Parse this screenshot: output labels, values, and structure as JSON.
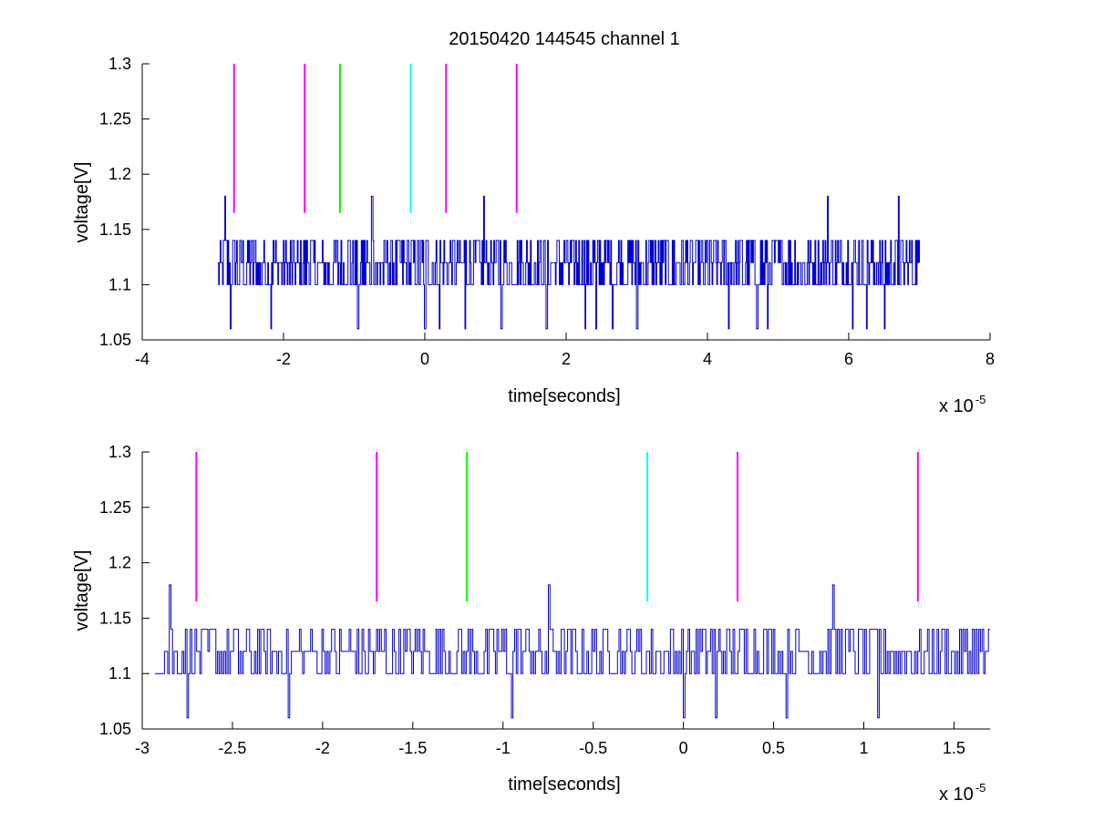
{
  "chart_data": [
    {
      "type": "line",
      "title": "20150420 144545 channel 1",
      "xlabel": "time[seconds]",
      "ylabel": "voltage[V]",
      "x_exponent_base": "x 10",
      "x_exponent_power": "-5",
      "xlim": [
        -4,
        8
      ],
      "ylim": [
        1.05,
        1.3
      ],
      "x_ticks": [
        "-4",
        "-2",
        "0",
        "2",
        "4",
        "6",
        "8"
      ],
      "x_tick_values": [
        -4,
        -2,
        0,
        2,
        4,
        6,
        8
      ],
      "y_ticks": [
        "1.05",
        "1.1",
        "1.15",
        "1.2",
        "1.25",
        "1.3"
      ],
      "y_tick_values": [
        1.05,
        1.1,
        1.15,
        1.2,
        1.25,
        1.3
      ],
      "grid": false,
      "signal": {
        "color": "#0000cc",
        "x_range": [
          -2.93,
          7.0
        ],
        "levels": [
          1.1,
          1.12,
          1.14
        ],
        "spikes_up": [
          -2.83,
          -0.75,
          0.83,
          5.7,
          6.7
        ],
        "spike_up_value": 1.18,
        "dips": [
          -2.75,
          -2.18,
          -0.95,
          0.0,
          0.2,
          0.57,
          1.08,
          1.72,
          2.27,
          2.42,
          2.65,
          3.0,
          4.3,
          4.7,
          4.85,
          6.05,
          6.25,
          6.5,
          6.7
        ],
        "dip_value": 1.06
      },
      "markers": [
        {
          "x": -2.7,
          "color": "#ff00ff"
        },
        {
          "x": -1.7,
          "color": "#ff00ff"
        },
        {
          "x": -1.2,
          "color": "#00ff00"
        },
        {
          "x": -0.2,
          "color": "#00ffff"
        },
        {
          "x": 0.3,
          "color": "#ff00ff"
        },
        {
          "x": 1.3,
          "color": "#ff00ff"
        }
      ],
      "marker_range": [
        1.165,
        1.3
      ]
    },
    {
      "type": "line",
      "title": "",
      "xlabel": "time[seconds]",
      "ylabel": "voltage[V]",
      "x_exponent_base": "x 10",
      "x_exponent_power": "-5",
      "xlim": [
        -3.0,
        1.7
      ],
      "ylim": [
        1.05,
        1.3
      ],
      "x_ticks": [
        "-3",
        "-2.5",
        "-2",
        "-1.5",
        "-1",
        "-0.5",
        "0",
        "0.5",
        "1",
        "1.5"
      ],
      "x_tick_values": [
        -3,
        -2.5,
        -2,
        -1.5,
        -1,
        -0.5,
        0,
        0.5,
        1,
        1.5
      ],
      "y_ticks": [
        "1.05",
        "1.1",
        "1.15",
        "1.2",
        "1.25",
        "1.3"
      ],
      "y_tick_values": [
        1.05,
        1.1,
        1.15,
        1.2,
        1.25,
        1.3
      ],
      "grid": false,
      "signal": {
        "color": "#0000cc",
        "x_range": [
          -2.93,
          1.7
        ],
        "levels": [
          1.1,
          1.12,
          1.14
        ],
        "spikes_up": [
          -2.85,
          -0.75,
          0.83
        ],
        "spike_up_value": 1.18,
        "dips": [
          -2.75,
          -2.19,
          -0.95,
          0.0,
          0.18,
          0.57,
          1.08
        ],
        "dip_value": 1.06
      },
      "markers": [
        {
          "x": -2.7,
          "color": "#ff00ff"
        },
        {
          "x": -1.7,
          "color": "#ff00ff"
        },
        {
          "x": -1.2,
          "color": "#00ff00"
        },
        {
          "x": -0.2,
          "color": "#00ffff"
        },
        {
          "x": 0.3,
          "color": "#ff00ff"
        },
        {
          "x": 1.3,
          "color": "#ff00ff"
        }
      ],
      "marker_range": [
        1.165,
        1.3
      ]
    }
  ]
}
